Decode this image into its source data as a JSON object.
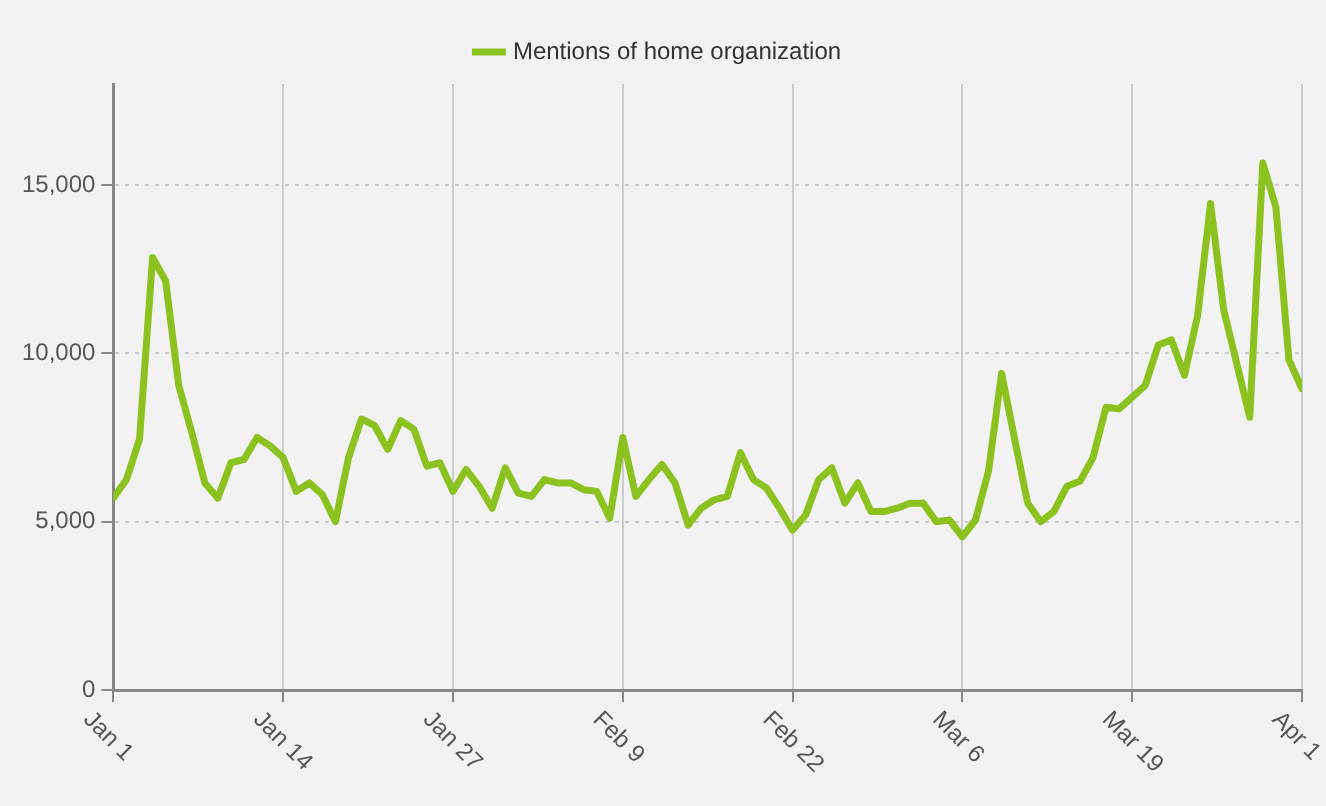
{
  "chart_data": {
    "type": "line",
    "x": [
      "--01-01",
      "--01-02",
      "--01-03",
      "--01-04",
      "--01-05",
      "--01-06",
      "--01-07",
      "--01-08",
      "--01-09",
      "--01-10",
      "--01-11",
      "--01-12",
      "--01-13",
      "--01-14",
      "--01-15",
      "--01-16",
      "--01-17",
      "--01-18",
      "--01-19",
      "--01-20",
      "--01-21",
      "--01-22",
      "--01-23",
      "--01-24",
      "--01-25",
      "--01-26",
      "--01-27",
      "--01-28",
      "--01-29",
      "--01-30",
      "--01-31",
      "--02-01",
      "--02-02",
      "--02-03",
      "--02-04",
      "--02-05",
      "--02-06",
      "--02-07",
      "--02-08",
      "--02-09",
      "--02-10",
      "--02-11",
      "--02-12",
      "--02-13",
      "--02-14",
      "--02-15",
      "--02-16",
      "--02-17",
      "--02-18",
      "--02-19",
      "--02-20",
      "--02-21",
      "--02-22",
      "--02-23",
      "--02-24",
      "--02-25",
      "--02-26",
      "--02-27",
      "--02-28",
      "--02-29",
      "--03-01",
      "--03-02",
      "--03-03",
      "--03-04",
      "--03-05",
      "--03-06",
      "--03-07",
      "--03-08",
      "--03-09",
      "--03-10",
      "--03-11",
      "--03-12",
      "--03-13",
      "--03-14",
      "--03-15",
      "--03-16",
      "--03-17",
      "--03-18",
      "--03-19",
      "--03-20",
      "--03-21",
      "--03-22",
      "--03-23",
      "--03-24",
      "--03-25",
      "--03-26",
      "--03-27",
      "--03-28",
      "--03-29",
      "--03-30",
      "--03-31",
      "--04-01"
    ],
    "series": [
      {
        "name": "Mentions of home organization",
        "color": "#8cc220",
        "values": [
          5700,
          6250,
          7450,
          12850,
          12150,
          9050,
          7650,
          6150,
          5700,
          6750,
          6850,
          7500,
          7250,
          6900,
          5900,
          6150,
          5800,
          5000,
          6900,
          8050,
          7850,
          7150,
          8000,
          7750,
          6650,
          6750,
          5900,
          6550,
          6050,
          5400,
          6600,
          5850,
          5750,
          6250,
          6150,
          6150,
          5950,
          5900,
          5100,
          7500,
          5750,
          6250,
          6700,
          6150,
          4900,
          5400,
          5650,
          5750,
          7050,
          6250,
          6000,
          5400,
          4750,
          5200,
          6250,
          6600,
          5550,
          6150,
          5300,
          5300,
          5400,
          5550,
          5550,
          5000,
          5050,
          4550,
          5050,
          6500,
          9400,
          7450,
          5550,
          5000,
          5300,
          6050,
          6200,
          6900,
          8400,
          8350,
          8700,
          9050,
          10250,
          10400,
          9350,
          11100,
          14450,
          11300,
          9700,
          8100,
          15650,
          14350,
          9800,
          8950
        ]
      }
    ],
    "xlim": [
      "--01-01",
      "--04-01"
    ],
    "xticks": [
      {
        "value": "--01-01",
        "label": "Jan 1"
      },
      {
        "value": "--01-14",
        "label": "Jan 14"
      },
      {
        "value": "--01-27",
        "label": "Jan 27"
      },
      {
        "value": "--02-09",
        "label": "Feb 9"
      },
      {
        "value": "--02-22",
        "label": "Feb 22"
      },
      {
        "value": "--03-06",
        "label": "Mar 6"
      },
      {
        "value": "--03-19",
        "label": "Mar 19"
      },
      {
        "value": "--04-01",
        "label": "Apr 1"
      }
    ],
    "ylim": [
      0,
      18000
    ],
    "yticks": [
      0,
      {
        "value": 5000,
        "label": "5,000"
      },
      {
        "value": 10000,
        "label": "10,000"
      },
      {
        "value": 15000,
        "label": "15,000"
      }
    ],
    "grid": true,
    "legend": "top",
    "marker": "none",
    "line_style": "solid"
  }
}
